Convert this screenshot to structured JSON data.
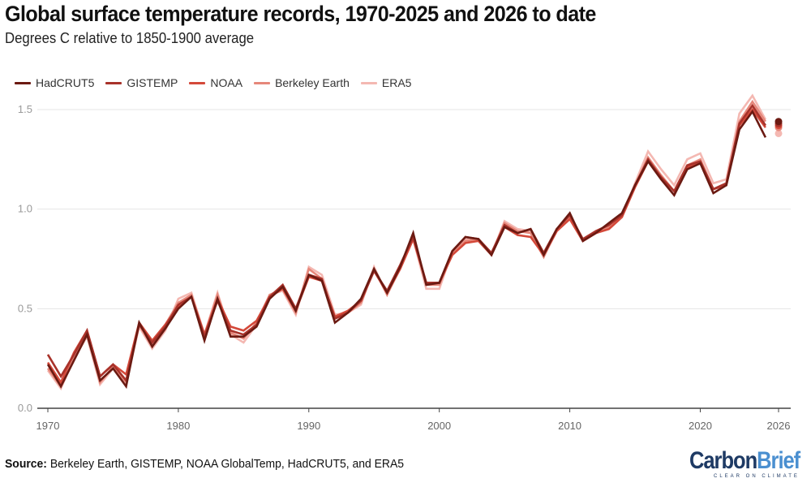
{
  "chart_data": {
    "type": "line",
    "title": "Global surface temperature records, 1970-2025 and 2026 to date",
    "subtitle": "Degrees C relative to 1850-1900 average",
    "xlabel": "",
    "ylabel": "",
    "xlim": [
      1970,
      2026
    ],
    "ylim": [
      0,
      1.6
    ],
    "x_ticks": [
      1970,
      1980,
      1990,
      2000,
      2010,
      2020,
      2026
    ],
    "y_ticks": [
      0.0,
      0.5,
      1.0,
      1.5
    ],
    "y_tick_labels": [
      "0.0",
      "0.5",
      "1.0",
      "1.5"
    ],
    "grid": "horizontal",
    "legend_position": "top-left",
    "x": [
      1970,
      1971,
      1972,
      1973,
      1974,
      1975,
      1976,
      1977,
      1978,
      1979,
      1980,
      1981,
      1982,
      1983,
      1984,
      1985,
      1986,
      1987,
      1988,
      1989,
      1990,
      1991,
      1992,
      1993,
      1994,
      1995,
      1996,
      1997,
      1998,
      1999,
      2000,
      2001,
      2002,
      2003,
      2004,
      2005,
      2006,
      2007,
      2008,
      2009,
      2010,
      2011,
      2012,
      2013,
      2014,
      2015,
      2016,
      2017,
      2018,
      2019,
      2020,
      2021,
      2022,
      2023,
      2024,
      2025
    ],
    "series": [
      {
        "name": "HadCRUT5",
        "color": "#6b1a12",
        "values": [
          0.22,
          0.11,
          0.24,
          0.37,
          0.14,
          0.2,
          0.11,
          0.43,
          0.31,
          0.4,
          0.5,
          0.56,
          0.34,
          0.55,
          0.36,
          0.36,
          0.41,
          0.55,
          0.61,
          0.49,
          0.67,
          0.64,
          0.43,
          0.48,
          0.55,
          0.7,
          0.58,
          0.71,
          0.88,
          0.62,
          0.63,
          0.79,
          0.86,
          0.85,
          0.77,
          0.91,
          0.88,
          0.9,
          0.77,
          0.9,
          0.98,
          0.84,
          0.88,
          0.93,
          0.98,
          1.12,
          1.24,
          1.15,
          1.07,
          1.2,
          1.23,
          1.08,
          1.12,
          1.4,
          1.49,
          1.36
        ],
        "current_year_to_date": 1.44
      },
      {
        "name": "GISTEMP",
        "color": "#a8322a",
        "values": [
          0.27,
          0.16,
          0.27,
          0.39,
          0.16,
          0.22,
          0.14,
          0.42,
          0.33,
          0.41,
          0.52,
          0.56,
          0.36,
          0.54,
          0.39,
          0.37,
          0.42,
          0.56,
          0.62,
          0.5,
          0.67,
          0.65,
          0.45,
          0.48,
          0.54,
          0.69,
          0.59,
          0.72,
          0.86,
          0.63,
          0.63,
          0.79,
          0.86,
          0.85,
          0.78,
          0.92,
          0.88,
          0.9,
          0.78,
          0.9,
          0.97,
          0.85,
          0.89,
          0.92,
          0.97,
          1.12,
          1.25,
          1.16,
          1.09,
          1.22,
          1.24,
          1.1,
          1.13,
          1.43,
          1.52,
          1.42
        ],
        "current_year_to_date": 1.43
      },
      {
        "name": "NOAA",
        "color": "#d4493a",
        "values": [
          0.23,
          0.13,
          0.28,
          0.39,
          0.16,
          0.22,
          0.17,
          0.43,
          0.34,
          0.42,
          0.51,
          0.56,
          0.37,
          0.55,
          0.41,
          0.39,
          0.44,
          0.56,
          0.6,
          0.49,
          0.66,
          0.64,
          0.46,
          0.49,
          0.54,
          0.69,
          0.58,
          0.7,
          0.85,
          0.63,
          0.63,
          0.77,
          0.83,
          0.84,
          0.77,
          0.91,
          0.87,
          0.86,
          0.77,
          0.89,
          0.95,
          0.84,
          0.88,
          0.9,
          0.96,
          1.11,
          1.24,
          1.16,
          1.09,
          1.21,
          1.23,
          1.1,
          1.12,
          1.42,
          1.5,
          1.41
        ],
        "current_year_to_date": 1.42
      },
      {
        "name": "Berkeley Earth",
        "color": "#e6877a",
        "values": [
          0.2,
          0.11,
          0.26,
          0.38,
          0.13,
          0.21,
          0.13,
          0.42,
          0.31,
          0.42,
          0.53,
          0.57,
          0.37,
          0.57,
          0.38,
          0.35,
          0.43,
          0.57,
          0.6,
          0.48,
          0.7,
          0.65,
          0.45,
          0.48,
          0.53,
          0.7,
          0.57,
          0.71,
          0.86,
          0.62,
          0.62,
          0.78,
          0.84,
          0.85,
          0.77,
          0.93,
          0.89,
          0.88,
          0.76,
          0.9,
          0.96,
          0.84,
          0.88,
          0.91,
          0.97,
          1.12,
          1.26,
          1.17,
          1.09,
          1.22,
          1.25,
          1.1,
          1.13,
          1.44,
          1.54,
          1.44
        ],
        "current_year_to_date": 1.41
      },
      {
        "name": "ERA5",
        "color": "#f4b8b2",
        "values": [
          0.19,
          0.1,
          0.25,
          0.36,
          0.12,
          0.2,
          0.13,
          0.41,
          0.3,
          0.39,
          0.55,
          0.58,
          0.37,
          0.58,
          0.37,
          0.33,
          0.42,
          0.57,
          0.59,
          0.47,
          0.71,
          0.67,
          0.47,
          0.48,
          0.52,
          0.71,
          0.57,
          0.7,
          0.85,
          0.6,
          0.6,
          0.79,
          0.85,
          0.85,
          0.77,
          0.94,
          0.9,
          0.89,
          0.76,
          0.89,
          0.96,
          0.84,
          0.89,
          0.92,
          0.96,
          1.13,
          1.29,
          1.2,
          1.12,
          1.25,
          1.28,
          1.13,
          1.15,
          1.48,
          1.57,
          1.45
        ],
        "current_year_to_date": 1.38
      }
    ]
  },
  "footer": {
    "source_label": "Source:",
    "source_text": " Berkeley Earth, GISTEMP, NOAA GlobalTemp, HadCRUT5, and ERA5"
  },
  "logo": {
    "carbon": "Carbon",
    "brief": "Brief",
    "tagline": "CLEAR ON CLIMATE"
  }
}
